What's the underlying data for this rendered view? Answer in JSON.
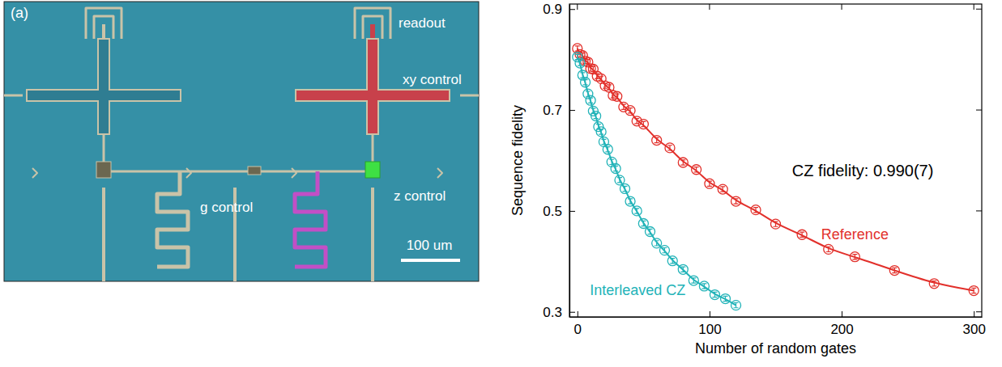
{
  "chart_data": {
    "type": "scatter",
    "xlabel": "Number of random gates",
    "ylabel": "Sequence fidelity",
    "xlim": [
      -6,
      306
    ],
    "ylim": [
      0.29,
      0.91
    ],
    "xticks": [
      0,
      100,
      200,
      300
    ],
    "yticks": [
      0.3,
      0.5,
      0.7,
      0.9
    ],
    "annotations": [
      "CZ fidelity:  0.990(7)"
    ],
    "series": [
      {
        "name": "Reference",
        "color": "#e2302b",
        "marker": "circle",
        "line_style": "solid",
        "x": [
          0,
          2,
          4,
          6,
          8,
          10,
          12,
          15,
          18,
          21,
          24,
          27,
          30,
          35,
          40,
          45,
          50,
          60,
          70,
          80,
          90,
          100,
          110,
          120,
          135,
          150,
          170,
          190,
          210,
          240,
          270,
          300
        ],
        "values": [
          0.822,
          0.81,
          0.808,
          0.797,
          0.795,
          0.782,
          0.781,
          0.767,
          0.762,
          0.748,
          0.745,
          0.729,
          0.727,
          0.706,
          0.699,
          0.678,
          0.672,
          0.64,
          0.625,
          0.596,
          0.582,
          0.554,
          0.543,
          0.519,
          0.502,
          0.474,
          0.453,
          0.424,
          0.409,
          0.382,
          0.356,
          0.342
        ],
        "errors": [
          0.005,
          0.005,
          0.005,
          0.005,
          0.005,
          0.005,
          0.005,
          0.005,
          0.005,
          0.005,
          0.005,
          0.005,
          0.005,
          0.005,
          0.005,
          0.005,
          0.005,
          0.005,
          0.005,
          0.005,
          0.005,
          0.005,
          0.005,
          0.005,
          0.005,
          0.005,
          0.005,
          0.005,
          0.005,
          0.005,
          0.005,
          0.005
        ]
      },
      {
        "name": "Interleaved CZ",
        "color": "#22b3b8",
        "marker": "circle",
        "line_style": "solid",
        "x": [
          0,
          2,
          4,
          6,
          8,
          10,
          12,
          14,
          16,
          18,
          20,
          23,
          26,
          29,
          32,
          36,
          40,
          45,
          50,
          55,
          60,
          66,
          72,
          80,
          88,
          96,
          104,
          112,
          120
        ],
        "values": [
          0.805,
          0.793,
          0.769,
          0.755,
          0.732,
          0.719,
          0.698,
          0.688,
          0.667,
          0.657,
          0.637,
          0.622,
          0.597,
          0.584,
          0.561,
          0.544,
          0.519,
          0.5,
          0.475,
          0.459,
          0.436,
          0.422,
          0.401,
          0.384,
          0.362,
          0.351,
          0.334,
          0.326,
          0.313
        ],
        "errors": [
          0.005,
          0.005,
          0.005,
          0.005,
          0.005,
          0.005,
          0.005,
          0.005,
          0.005,
          0.005,
          0.005,
          0.005,
          0.005,
          0.005,
          0.005,
          0.005,
          0.005,
          0.005,
          0.005,
          0.005,
          0.005,
          0.005,
          0.005,
          0.005,
          0.005,
          0.005,
          0.005,
          0.005,
          0.005
        ]
      }
    ]
  },
  "panel_a": {
    "label": "(a)",
    "labels": [
      "readout",
      "xy control",
      "g control",
      "z control"
    ],
    "scale_bar": "100 um"
  }
}
